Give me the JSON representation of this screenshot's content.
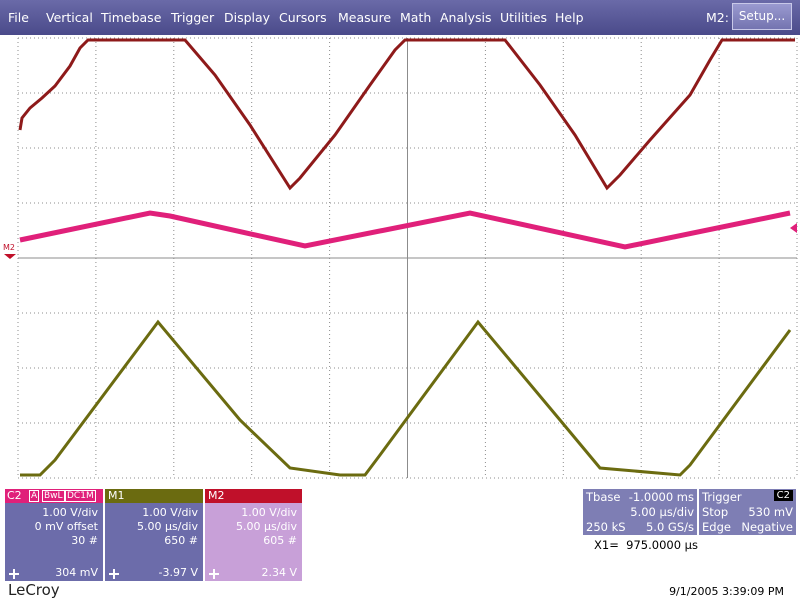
{
  "menu": {
    "items": [
      "File",
      "Vertical",
      "Timebase",
      "Trigger",
      "Display",
      "Cursors",
      "Measure",
      "Math",
      "Analysis",
      "Utilities",
      "Help"
    ],
    "math_label": "M2:",
    "setup_button": "Setup..."
  },
  "markers": {
    "left": "M2"
  },
  "channels": [
    {
      "label": "C2",
      "tags": [
        "A",
        "BwL",
        "DC1M"
      ],
      "lines": [
        "1.00 V/div",
        "0 mV offset",
        "30 #"
      ],
      "footer": "304 mV"
    },
    {
      "label": "M1",
      "lines": [
        "1.00 V/div",
        "5.00 µs/div",
        "650 #"
      ],
      "footer": "-3.97 V"
    },
    {
      "label": "M2",
      "lines": [
        "1.00 V/div",
        "5.00 µs/div",
        "605 #"
      ],
      "footer": "2.34 V"
    }
  ],
  "timebase": {
    "label": "Tbase",
    "delay": "-1.0000 ms",
    "scale": "5.00 µs/div",
    "samples": "250 kS",
    "rate": "5.0 GS/s"
  },
  "trigger": {
    "label": "Trigger",
    "source": "C2",
    "mode": "Stop",
    "level": "530 mV",
    "type": "Edge",
    "slope": "Negative"
  },
  "cursor": "X1=  975.0000 µs",
  "brand": "LeCroy",
  "timestamp": "9/1/2005 3:39:09 PM"
}
